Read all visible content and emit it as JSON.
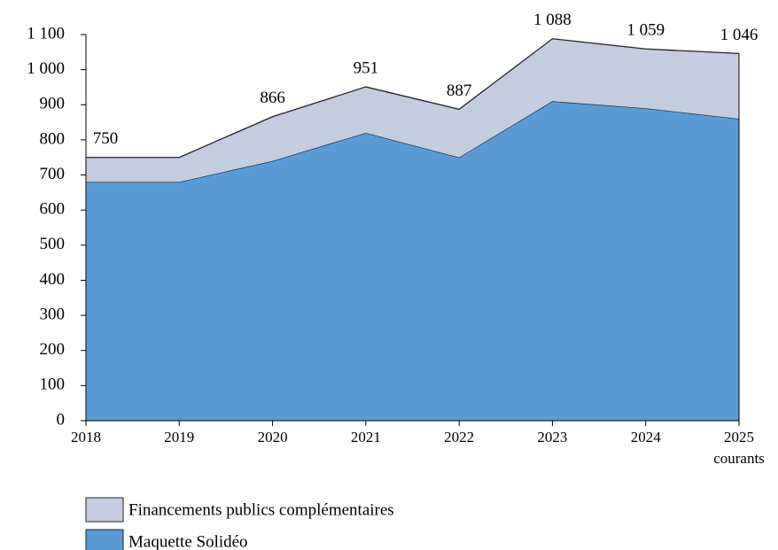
{
  "chart_data": {
    "type": "stacked_area",
    "categories": [
      "2018",
      "2019",
      "2020",
      "2021",
      "2022",
      "2023",
      "2024",
      "2025"
    ],
    "annotation": "courants",
    "series": [
      {
        "name": "Maquette Solidéo",
        "color": "#5b9bd5",
        "values": [
          680,
          680,
          740,
          820,
          750,
          910,
          890,
          860
        ]
      },
      {
        "name": "Financements publics complémentaires",
        "color": "#c4cde0",
        "values": [
          70,
          70,
          126,
          131,
          137,
          178,
          169,
          186
        ]
      }
    ],
    "totals": [
      750,
      null,
      866,
      951,
      887,
      1088,
      1059,
      1046
    ],
    "total_labels": [
      "750",
      null,
      "866",
      "951",
      "887",
      "1 088",
      "1 059",
      "1 046"
    ],
    "ylim": [
      0,
      1100
    ],
    "yticks": [
      0,
      100,
      200,
      300,
      400,
      500,
      600,
      700,
      800,
      900,
      {
        "value": 1000,
        "label": "1 000"
      },
      {
        "value": 1100,
        "label": "1 100"
      }
    ],
    "grid": false
  }
}
